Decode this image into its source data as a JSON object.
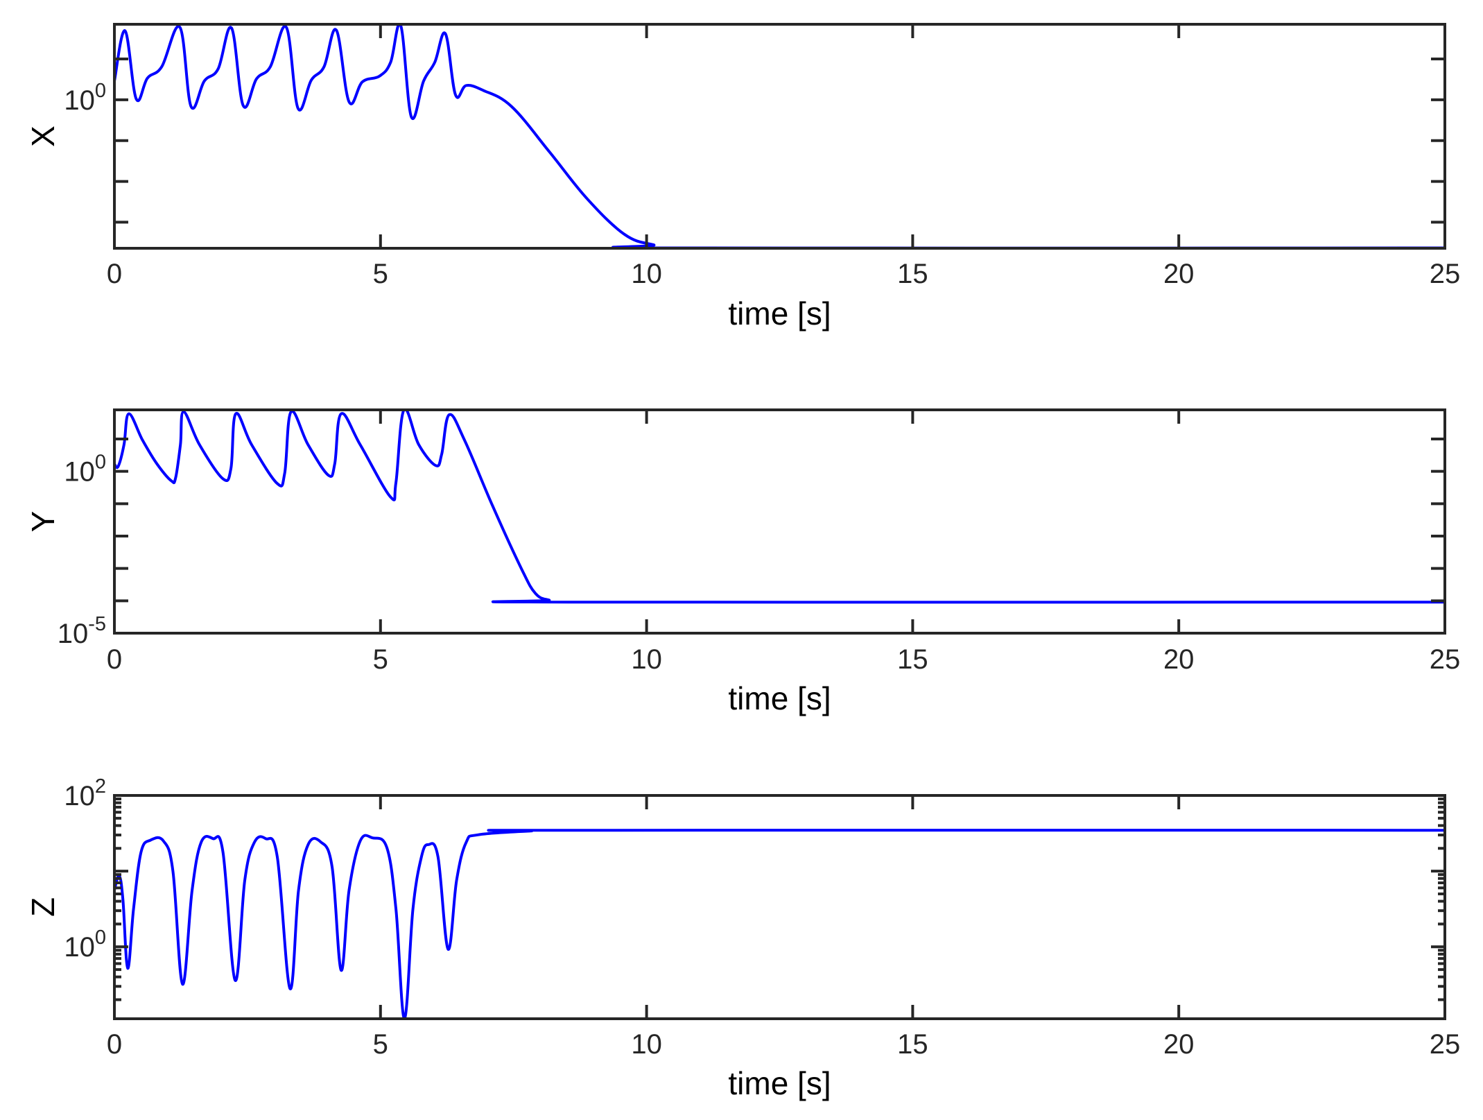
{
  "chart_data": [
    {
      "type": "line",
      "ylabel": "X",
      "xlabel": "time [s]",
      "xlim": [
        0,
        25
      ],
      "xticks": [
        "0",
        "5",
        "10",
        "15",
        "20",
        "25"
      ],
      "yscale": "log",
      "ylim": [
        0.00023,
        70.8
      ],
      "yticklabels": [
        {
          "value": 1,
          "base": "10",
          "exp": "0"
        }
      ],
      "ytick_decades": [
        -3,
        -2,
        -1,
        0,
        1
      ],
      "minor_ticks": false,
      "grid": false,
      "color": "#0000ff",
      "series": [
        {
          "x": [
            0,
            0.2,
            0.41,
            0.62,
            0.89,
            1.23,
            1.44,
            1.69,
            1.95,
            2.2,
            2.42,
            2.67,
            2.93,
            3.23,
            3.45,
            3.7,
            3.94,
            4.17,
            4.41,
            4.66,
            4.98,
            5.19,
            5.38,
            5.58,
            5.81,
            6.02,
            6.22,
            6.41,
            6.61,
            6.93,
            7.46,
            8.17,
            8.88,
            9.59,
            10.13,
            10.66,
            25
          ],
          "y": [
            2.88,
            49,
            1.05,
            3.39,
            6.46,
            60,
            0.69,
            2.88,
            5.75,
            57.5,
            0.72,
            3.24,
            6.46,
            60,
            0.62,
            3.02,
            6.46,
            51,
            0.89,
            2.75,
            3.8,
            8.3,
            66,
            0.38,
            2.88,
            8.3,
            41.7,
            1.32,
            2.24,
            1.7,
            0.69,
            0.054,
            0.0038,
            0.0005,
            0.00028,
            0.000235,
            0.000235
          ]
        }
      ]
    },
    {
      "type": "line",
      "ylabel": "Y",
      "xlabel": "time [s]",
      "xlim": [
        0,
        25
      ],
      "xticks": [
        "0",
        "5",
        "10",
        "15",
        "20",
        "25"
      ],
      "yscale": "log",
      "ylim": [
        1e-05,
        79.4
      ],
      "yticklabels": [
        {
          "value": 1,
          "base": "10",
          "exp": "0"
        },
        {
          "value": 1e-05,
          "base": "10",
          "exp": "-5"
        }
      ],
      "ytick_decades": [
        -5,
        -4,
        -3,
        -2,
        -1,
        0,
        1
      ],
      "minor_ticks": false,
      "grid": false,
      "color": "#0000ff",
      "series": [
        {
          "x": [
            0,
            0.07,
            0.18,
            0.27,
            0.53,
            0.8,
            1.07,
            1.15,
            1.24,
            1.3,
            1.6,
            2.04,
            2.19,
            2.28,
            2.58,
            3.06,
            3.2,
            3.32,
            3.64,
            4.02,
            4.14,
            4.26,
            4.62,
            5.19,
            5.29,
            5.44,
            5.72,
            6.04,
            6.15,
            6.29,
            6.58,
            7.11,
            7.64,
            7.91,
            8.17,
            8.53,
            25
          ],
          "y": [
            1.7,
            1.41,
            6.6,
            60,
            9.1,
            1.7,
            0.51,
            0.63,
            6.6,
            69,
            6.6,
            0.59,
            1.23,
            60,
            6.6,
            0.42,
            0.87,
            69,
            6.6,
            0.76,
            1.7,
            60,
            6.6,
            0.16,
            0.45,
            79,
            6.6,
            1.51,
            3.4,
            56,
            9.1,
            0.083,
            0.00105,
            0.00017,
            0.000105,
            9.1e-05,
            9.1e-05
          ]
        }
      ]
    },
    {
      "type": "line",
      "ylabel": "Z",
      "xlabel": "time [s]",
      "xlim": [
        0,
        25
      ],
      "xticks": [
        "0",
        "5",
        "10",
        "15",
        "20",
        "25"
      ],
      "yscale": "log",
      "ylim": [
        0.112,
        100
      ],
      "yticklabels": [
        {
          "value": 100,
          "base": "10",
          "exp": "2"
        },
        {
          "value": 1,
          "base": "10",
          "exp": "0"
        }
      ],
      "ytick_decades": [
        0,
        1,
        2
      ],
      "minor_ticks": true,
      "grid": false,
      "color": "#0000ff",
      "series": [
        {
          "x": [
            0,
            0.09,
            0.16,
            0.25,
            0.36,
            0.5,
            0.68,
            0.92,
            1.1,
            1.28,
            1.46,
            1.63,
            1.85,
            2.04,
            2.27,
            2.45,
            2.63,
            2.84,
            3.06,
            3.3,
            3.46,
            3.64,
            3.87,
            4.09,
            4.26,
            4.41,
            4.62,
            4.85,
            5.12,
            5.29,
            5.45,
            5.61,
            5.77,
            5.9,
            6.08,
            6.27,
            6.43,
            6.61,
            6.84,
            7.82,
            8.53,
            25
          ],
          "y": [
            5.6,
            8.7,
            4.2,
            0.52,
            3.16,
            17.8,
            25.7,
            25.1,
            10,
            0.32,
            5.6,
            24,
            26.9,
            17.8,
            0.36,
            7.6,
            24,
            26.9,
            15.5,
            0.28,
            5.6,
            22.4,
            24.5,
            11.5,
            0.49,
            5.6,
            25.1,
            27.5,
            20.4,
            3.16,
            0.113,
            3.16,
            15.5,
            22.4,
            15.5,
            0.93,
            7.6,
            24,
            30.2,
            33.9,
            34.7,
            34.7
          ]
        }
      ]
    }
  ]
}
